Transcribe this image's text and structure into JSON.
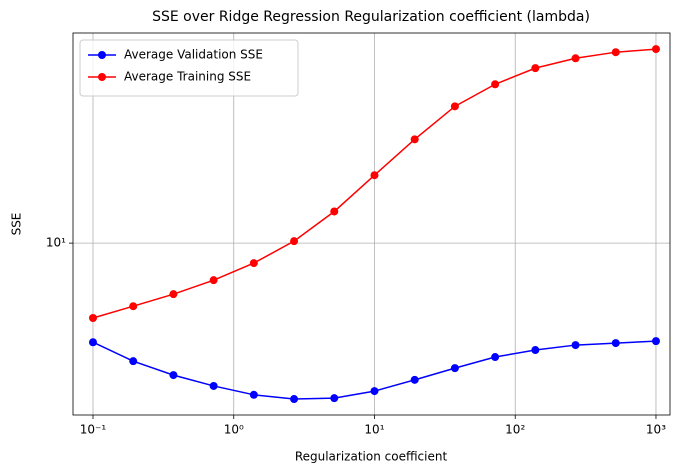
{
  "chart_data": {
    "type": "line",
    "title": "SSE over Ridge Regression Regularization coefficient (lambda)",
    "x_label": "Regularization coefficient",
    "y_label": "SSE",
    "x": [
      0.1,
      0.1931,
      0.3728,
      0.7197,
      1.3895,
      2.6827,
      5.1795,
      10,
      19.307,
      37.276,
      71.969,
      138.95,
      268.27,
      517.95,
      1000
    ],
    "series": [
      {
        "name": "Average Validation SSE",
        "color": "#0000ff",
        "values": [
          4.73,
          4.1,
          3.69,
          3.4,
          3.18,
          3.08,
          3.1,
          3.27,
          3.56,
          3.89,
          4.23,
          4.46,
          4.63,
          4.7,
          4.77
        ]
      },
      {
        "name": "Average Training SSE",
        "color": "#ff0000",
        "values": [
          5.68,
          6.21,
          6.8,
          7.56,
          8.6,
          10.15,
          12.7,
          16.7,
          21.9,
          28.1,
          33.2,
          37.5,
          40.4,
          42.3,
          43.3
        ]
      }
    ],
    "xscale": "log",
    "yscale": "log",
    "xlim": [
      0.0721,
      1258
    ],
    "ylim": [
      2.73,
      48.9
    ],
    "xticks": [
      {
        "value": 0.1,
        "label": "10⁻¹"
      },
      {
        "value": 1,
        "label": "10⁰"
      },
      {
        "value": 10,
        "label": "10¹"
      },
      {
        "value": 100,
        "label": "10²"
      },
      {
        "value": 1000,
        "label": "10³"
      }
    ],
    "yticks": [
      {
        "value": 10,
        "label": "10¹"
      }
    ],
    "grid": true,
    "legend": "upper-left"
  }
}
